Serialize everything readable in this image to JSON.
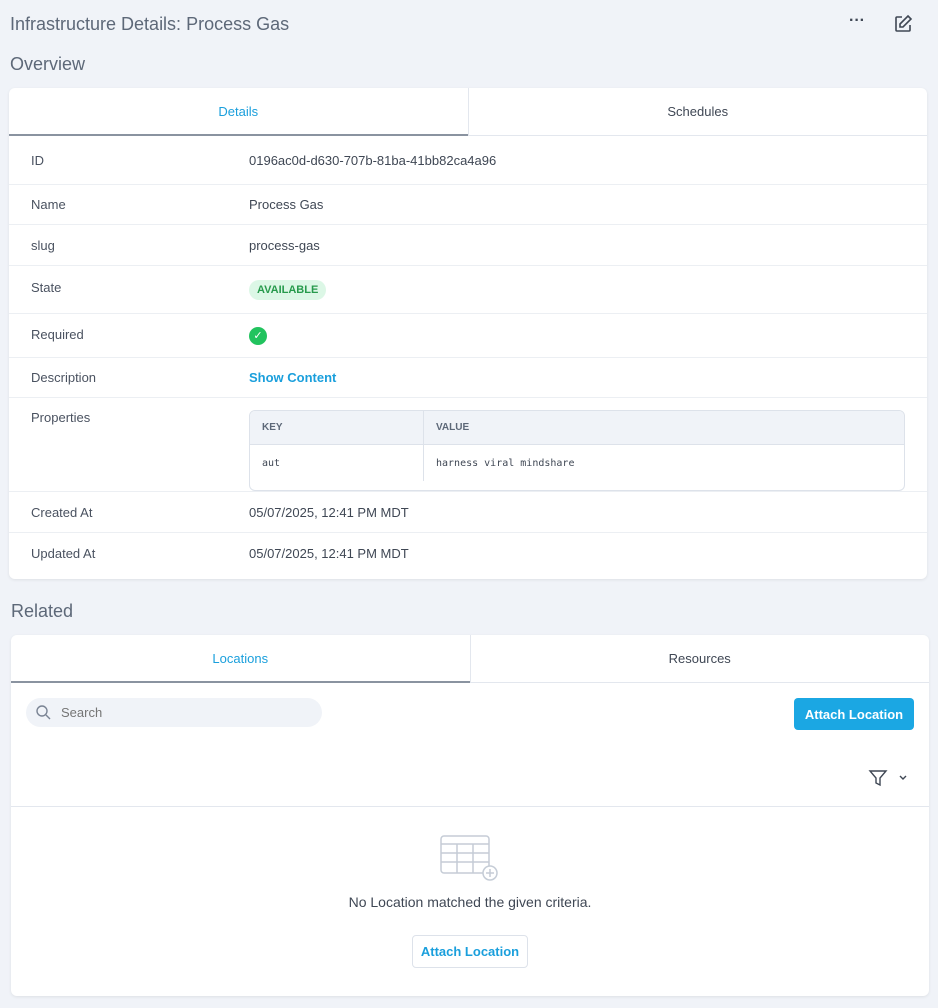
{
  "header": {
    "title": "Infrastructure Details: Process Gas",
    "more_icon": "more-horizontal-icon",
    "edit_icon": "edit-icon"
  },
  "overview": {
    "heading": "Overview",
    "tabs": [
      {
        "label": "Details",
        "active": true
      },
      {
        "label": "Schedules",
        "active": false
      }
    ],
    "fields": {
      "id": {
        "label": "ID",
        "value": "0196ac0d-d630-707b-81ba-41bb82ca4a96"
      },
      "name": {
        "label": "Name",
        "value": "Process Gas"
      },
      "slug": {
        "label": "slug",
        "value": "process-gas"
      },
      "state": {
        "label": "State",
        "value": "AVAILABLE"
      },
      "required": {
        "label": "Required",
        "value": "check-circle-icon"
      },
      "description": {
        "label": "Description",
        "value": "Show Content"
      },
      "properties": {
        "label": "Properties",
        "columns": [
          "KEY",
          "VALUE"
        ],
        "rows": [
          [
            "aut",
            "harness viral mindshare"
          ]
        ]
      },
      "created": {
        "label": "Created At",
        "value": "05/07/2025, 12:41 PM MDT"
      },
      "updated": {
        "label": "Updated At",
        "value": "05/07/2025, 12:41 PM MDT"
      }
    }
  },
  "related": {
    "heading": "Related",
    "tabs": [
      {
        "label": "Locations",
        "active": true
      },
      {
        "label": "Resources",
        "active": false
      }
    ],
    "search": {
      "placeholder": "Search",
      "value": ""
    },
    "attach_button": "Attach Location",
    "empty_message": "No Location matched the given criteria.",
    "empty_button": "Attach Location",
    "colors": {
      "accent": "#1ba7e3",
      "success": "#22c35e"
    }
  }
}
